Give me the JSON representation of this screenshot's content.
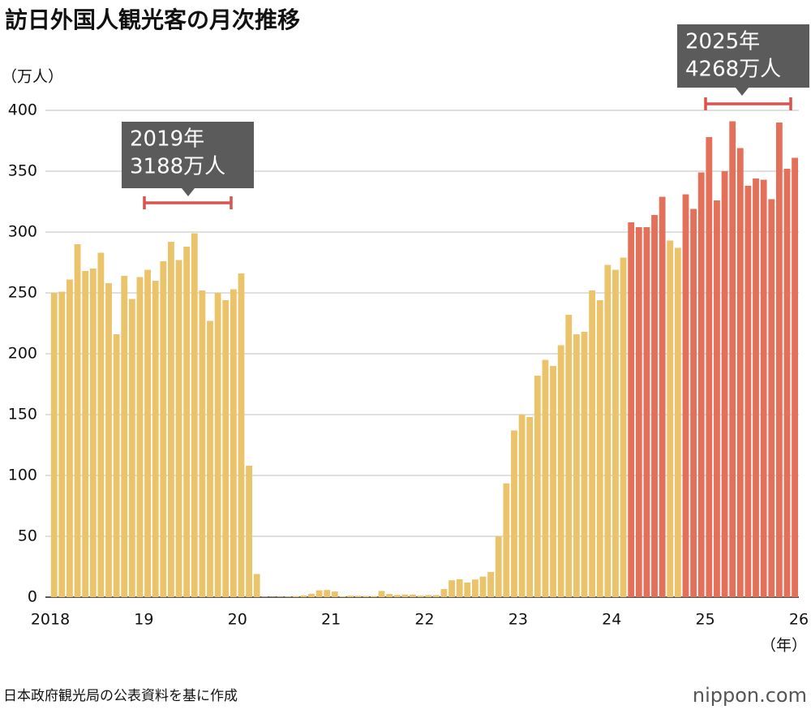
{
  "chart_data": {
    "type": "bar",
    "title": "訪日外国人観光客の月次推移",
    "ylabel": "（万人）",
    "xlabel": "（年）",
    "source": "日本政府観光局の公表資料を基に作成",
    "logo": "nippon.com",
    "x_tick_labels": [
      "2018",
      "19",
      "20",
      "21",
      "22",
      "23",
      "24",
      "25",
      "26"
    ],
    "values": [
      250,
      251,
      261,
      290,
      268,
      270,
      283,
      258,
      216,
      264,
      245,
      263,
      269,
      260,
      276,
      292,
      277,
      288,
      299,
      252,
      227,
      250,
      244,
      253,
      266,
      108,
      19,
      0.3,
      0.2,
      0.3,
      0.4,
      0.9,
      1.4,
      2.8,
      5.6,
      5.9,
      4.6,
      0.7,
      1.2,
      1.1,
      1.0,
      0.9,
      5.1,
      2.6,
      1.8,
      2.2,
      2.1,
      1.2,
      1.7,
      1.7,
      6.6,
      13.9,
      14.7,
      12.0,
      14.5,
      16.9,
      20.7,
      49.9,
      93.5,
      137,
      150,
      148,
      182,
      195,
      190,
      207,
      232,
      216,
      218,
      252,
      244,
      273,
      269,
      279,
      308,
      304,
      304,
      314,
      329,
      293,
      287,
      331,
      319,
      349,
      378,
      326,
      350,
      391,
      369,
      338,
      344,
      343,
      327,
      390,
      352,
      361
    ],
    "colors": [
      "#ebc36b",
      "#ebc36b",
      "#ebc36b",
      "#ebc36b",
      "#ebc36b",
      "#ebc36b",
      "#ebc36b",
      "#ebc36b",
      "#ebc36b",
      "#ebc36b",
      "#ebc36b",
      "#ebc36b",
      "#ebc36b",
      "#ebc36b",
      "#ebc36b",
      "#ebc36b",
      "#ebc36b",
      "#ebc36b",
      "#ebc36b",
      "#ebc36b",
      "#ebc36b",
      "#ebc36b",
      "#ebc36b",
      "#ebc36b",
      "#ebc36b",
      "#ebc36b",
      "#ebc36b",
      "#ebc36b",
      "#ebc36b",
      "#ebc36b",
      "#ebc36b",
      "#ebc36b",
      "#ebc36b",
      "#ebc36b",
      "#ebc36b",
      "#ebc36b",
      "#ebc36b",
      "#ebc36b",
      "#ebc36b",
      "#ebc36b",
      "#ebc36b",
      "#ebc36b",
      "#ebc36b",
      "#ebc36b",
      "#ebc36b",
      "#ebc36b",
      "#ebc36b",
      "#ebc36b",
      "#ebc36b",
      "#ebc36b",
      "#ebc36b",
      "#ebc36b",
      "#ebc36b",
      "#ebc36b",
      "#ebc36b",
      "#ebc36b",
      "#ebc36b",
      "#ebc36b",
      "#ebc36b",
      "#ebc36b",
      "#ebc36b",
      "#ebc36b",
      "#ebc36b",
      "#ebc36b",
      "#ebc36b",
      "#ebc36b",
      "#ebc36b",
      "#ebc36b",
      "#ebc36b",
      "#ebc36b",
      "#ebc36b",
      "#ebc36b",
      "#ebc36b",
      "#ebc36b",
      "#e5705a",
      "#e5705a",
      "#e5705a",
      "#e5705a",
      "#e5705a",
      "#ebc36b",
      "#ebc36b",
      "#e5705a",
      "#e5705a",
      "#e5705a",
      "#e5705a",
      "#e5705a",
      "#e5705a",
      "#e5705a",
      "#e5705a",
      "#e5705a",
      "#e5705a",
      "#e5705a",
      "#e5705a",
      "#e5705a",
      "#e5705a",
      "#e5705a"
    ],
    "ylim": [
      0,
      400
    ],
    "yticks": [
      0,
      50,
      100,
      150,
      200,
      250,
      300,
      350,
      400
    ],
    "grid": true,
    "annotations": [
      {
        "lines": [
          "2019年",
          "3188万人"
        ]
      },
      {
        "lines": [
          "2025年",
          "4268万人"
        ]
      }
    ]
  }
}
